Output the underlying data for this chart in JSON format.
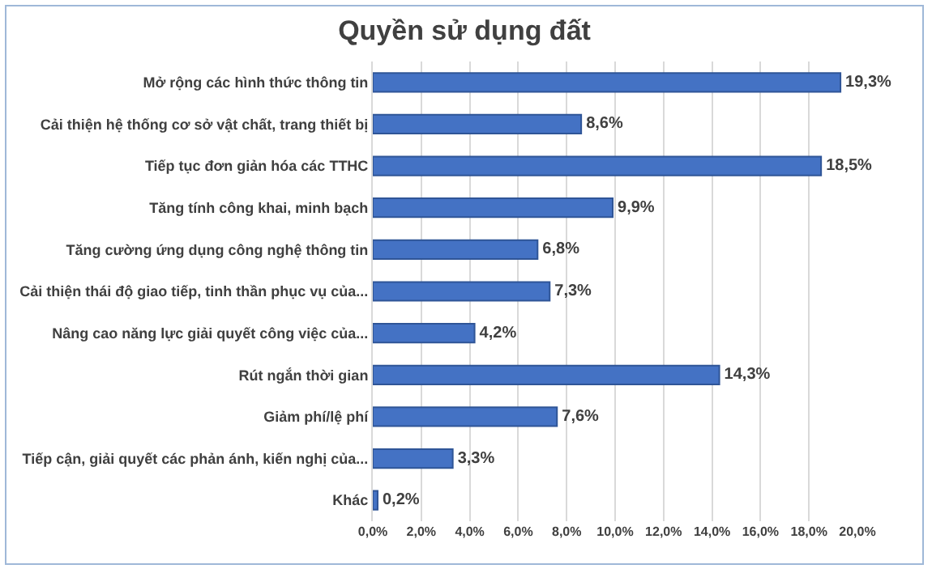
{
  "chart_data": {
    "type": "bar",
    "orientation": "horizontal",
    "title": "Quyền sử dụng đất",
    "categories": [
      "Mở rộng các hình thức thông tin",
      "Cải thiện hệ thống cơ sở vật chất, trang thiết bị",
      "Tiếp tục đơn giản hóa các TTHC",
      "Tăng tính công khai, minh bạch",
      "Tăng cường ứng dụng công nghệ thông tin",
      "Cải thiện thái độ giao tiếp, tinh thần phục vụ của...",
      "Nâng cao năng lực giải quyết công việc của...",
      "Rút ngắn thời gian",
      "Giảm phí/lệ phí",
      "Tiếp cận, giải quyết các phản ánh, kiến nghị của...",
      "Khác"
    ],
    "values": [
      19.3,
      8.6,
      18.5,
      9.9,
      6.8,
      7.3,
      4.2,
      14.3,
      7.6,
      3.3,
      0.2
    ],
    "value_labels": [
      "19,3%",
      "8,6%",
      "18,5%",
      "9,9%",
      "6,8%",
      "7,3%",
      "4,2%",
      "14,3%",
      "7,6%",
      "3,3%",
      "0,2%"
    ],
    "color": "#4472c4",
    "xlim": [
      0,
      20
    ],
    "xticks": [
      {
        "value": 0,
        "label": "0,0%"
      },
      {
        "value": 2,
        "label": "2,0%"
      },
      {
        "value": 4,
        "label": "4,0%"
      },
      {
        "value": 6,
        "label": "6,0%"
      },
      {
        "value": 8,
        "label": "8,0%"
      },
      {
        "value": 10,
        "label": "10,0%"
      },
      {
        "value": 12,
        "label": "12,0%"
      },
      {
        "value": 14,
        "label": "14,0%"
      },
      {
        "value": 16,
        "label": "16,0%"
      },
      {
        "value": 18,
        "label": "18,0%"
      },
      {
        "value": 20,
        "label": "20,0%"
      }
    ],
    "grid": "x"
  }
}
